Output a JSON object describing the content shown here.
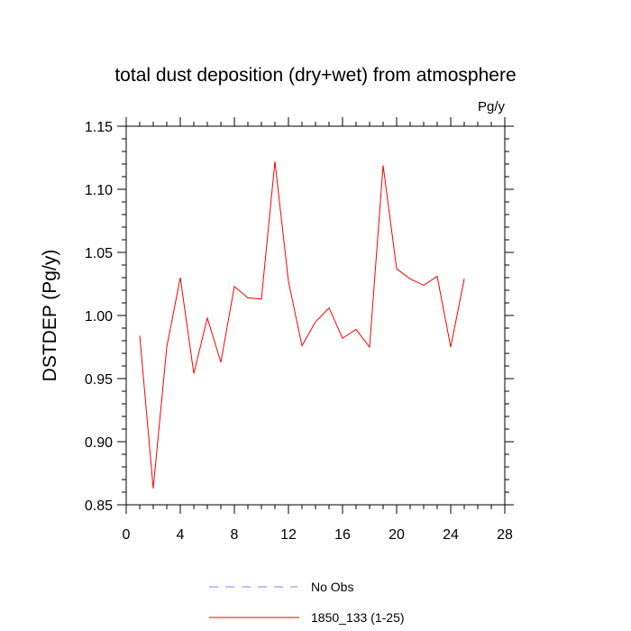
{
  "chart_data": {
    "type": "line",
    "title": "total dust deposition (dry+wet) from atmosphere",
    "units": "Pg/y",
    "xlabel": "",
    "ylabel": "DSTDEP  (Pg/y)",
    "xlim": [
      0,
      28
    ],
    "ylim": [
      0.85,
      1.15
    ],
    "xticks": [
      0,
      4,
      8,
      12,
      16,
      20,
      24,
      28
    ],
    "xtick_labels": [
      "0",
      "4",
      "8",
      "12",
      "16",
      "20",
      "24",
      "28"
    ],
    "yticks": [
      0.85,
      0.9,
      0.95,
      1.0,
      1.05,
      1.1,
      1.15
    ],
    "ytick_labels": [
      "0.85",
      "0.90",
      "0.95",
      "1.00",
      "1.05",
      "1.10",
      "1.15"
    ],
    "grid": false,
    "legend_position": "bottom",
    "series": [
      {
        "name": "No Obs",
        "color": "#8080ff",
        "style": "dashed",
        "x": [],
        "y": []
      },
      {
        "name": "1850_133 (1-25)",
        "color": "#ff0000",
        "style": "solid",
        "x": [
          1,
          2,
          3,
          4,
          5,
          6,
          7,
          8,
          9,
          10,
          11,
          12,
          13,
          14,
          15,
          16,
          17,
          18,
          19,
          20,
          21,
          22,
          23,
          24,
          25
        ],
        "y": [
          0.984,
          0.863,
          0.975,
          1.03,
          0.954,
          0.998,
          0.963,
          1.023,
          1.014,
          1.013,
          1.122,
          1.027,
          0.976,
          0.995,
          1.006,
          0.982,
          0.989,
          0.975,
          1.119,
          1.037,
          1.029,
          1.024,
          1.031,
          0.975,
          1.029
        ]
      }
    ]
  }
}
